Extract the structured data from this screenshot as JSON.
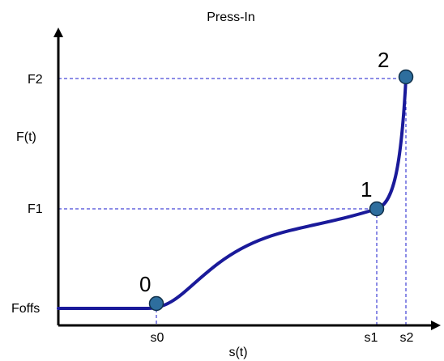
{
  "title": "Press-In",
  "axes": {
    "x_label": "s(t)",
    "y_label": "F(t)"
  },
  "x_ticks": [
    "s0",
    "s1",
    "s2"
  ],
  "y_ticks": [
    "Foffs",
    "F1",
    "F2"
  ],
  "points": [
    {
      "label": "0",
      "s": "s0",
      "F": "Foffs"
    },
    {
      "label": "1",
      "s": "s1",
      "F": "F1"
    },
    {
      "label": "2",
      "s": "s2",
      "F": "F2"
    }
  ],
  "colors": {
    "curve": "#1a1a9a",
    "guides": "#1a1acc",
    "point_fill": "#2e6e9e",
    "axes": "#000000"
  }
}
